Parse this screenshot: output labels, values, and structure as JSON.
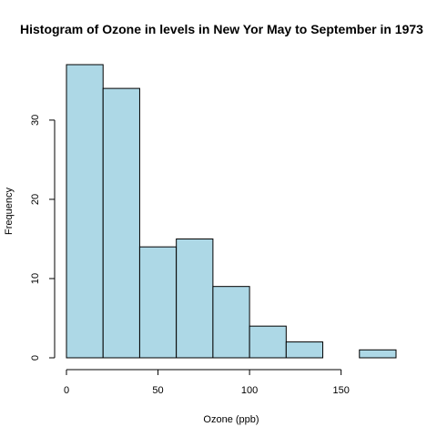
{
  "chart_data": {
    "type": "bar",
    "title": "Histogram of Ozone in levels in New Yor May to September in 1973",
    "xlabel": "Ozone (ppb)",
    "ylabel": "Frequency",
    "bins": [
      {
        "from": 0,
        "to": 20,
        "count": 37
      },
      {
        "from": 20,
        "to": 40,
        "count": 34
      },
      {
        "from": 40,
        "to": 60,
        "count": 14
      },
      {
        "from": 60,
        "to": 80,
        "count": 15
      },
      {
        "from": 80,
        "to": 100,
        "count": 9
      },
      {
        "from": 100,
        "to": 120,
        "count": 4
      },
      {
        "from": 120,
        "to": 140,
        "count": 2
      },
      {
        "from": 140,
        "to": 160,
        "count": 0
      },
      {
        "from": 160,
        "to": 180,
        "count": 1
      }
    ],
    "xlim": [
      0,
      180
    ],
    "ylim": [
      0,
      37
    ],
    "x_ticks": [
      0,
      50,
      100,
      150
    ],
    "y_ticks": [
      0,
      10,
      20,
      30
    ],
    "bar_color": "#add8e6",
    "grid": false,
    "legend": "none"
  }
}
